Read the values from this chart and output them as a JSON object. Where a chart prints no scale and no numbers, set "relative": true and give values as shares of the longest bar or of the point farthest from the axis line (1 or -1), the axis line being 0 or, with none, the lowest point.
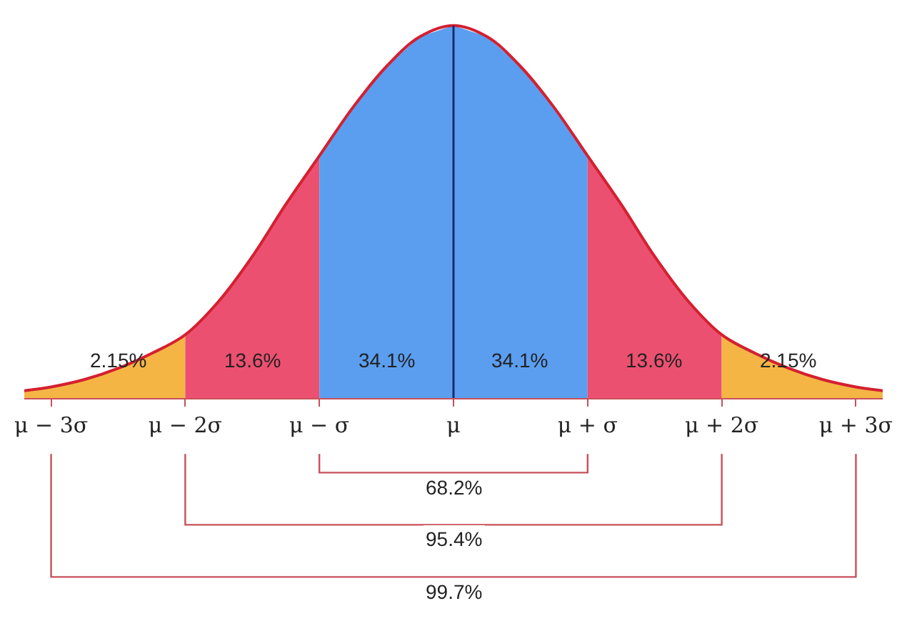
{
  "chart_data": {
    "type": "area",
    "relative": true,
    "xlim": [
      -3.2,
      3.2
    ],
    "xticks": [
      {
        "value": -3,
        "label": "μ − 3σ"
      },
      {
        "value": -2,
        "label": "μ − 2σ"
      },
      {
        "value": -1,
        "label": "μ − σ"
      },
      {
        "value": 0,
        "label": "μ"
      },
      {
        "value": 1,
        "label": "μ + σ"
      },
      {
        "value": 2,
        "label": "μ + 2σ"
      },
      {
        "value": 3,
        "label": "μ + 3σ"
      }
    ],
    "tick_labels": "x",
    "series": [
      {
        "color": "#f5b545",
        "x": [
          -3.2,
          -3,
          -2.75,
          -2.5,
          -2.25,
          -2
        ],
        "values": [
          0.02,
          0.03,
          0.05,
          0.08,
          0.12,
          0.17
        ]
      },
      {
        "color": "#ec5070",
        "x": [
          -2,
          -1.75,
          -1.5,
          -1.25,
          -1
        ],
        "values": [
          0.17,
          0.26,
          0.38,
          0.52,
          0.65
        ]
      },
      {
        "color": "#5b9ef0",
        "x": [
          -1,
          -0.75,
          -0.5,
          -0.25,
          0,
          0.25,
          0.5,
          0.75,
          1
        ],
        "values": [
          0.65,
          0.78,
          0.89,
          0.97,
          1,
          0.97,
          0.89,
          0.78,
          0.65
        ]
      },
      {
        "color": "#ec5070",
        "x": [
          1,
          1.25,
          1.5,
          1.75,
          2
        ],
        "values": [
          0.65,
          0.52,
          0.38,
          0.26,
          0.17
        ]
      },
      {
        "color": "#f5b545",
        "x": [
          2,
          2.25,
          2.5,
          2.75,
          3,
          3.2
        ],
        "values": [
          0.17,
          0.12,
          0.08,
          0.05,
          0.03,
          0.02
        ]
      },
      {
        "type": "line",
        "color": "#d42030",
        "x": [
          -3.2,
          -3,
          -2.75,
          -2.5,
          -2.25,
          -2,
          -1.75,
          -1.5,
          -1.25,
          -1,
          -0.75,
          -0.5,
          -0.25,
          0,
          0.25,
          0.5,
          0.75,
          1,
          1.25,
          1.5,
          1.75,
          2,
          2.25,
          2.5,
          2.75,
          3,
          3.2
        ],
        "values": [
          0.02,
          0.03,
          0.05,
          0.08,
          0.12,
          0.17,
          0.26,
          0.38,
          0.52,
          0.65,
          0.78,
          0.89,
          0.97,
          1,
          0.97,
          0.89,
          0.78,
          0.65,
          0.52,
          0.38,
          0.26,
          0.17,
          0.12,
          0.08,
          0.05,
          0.03,
          0.02
        ]
      }
    ],
    "ref_lines": [
      {
        "axis": "x",
        "value": 0,
        "color": "#1a2a6a"
      }
    ],
    "annotations": [
      "2.15%",
      "13.6%",
      "34.1%",
      "34.1%",
      "13.6%",
      "2.15%",
      "68.2%",
      "95.4%",
      "99.7%"
    ]
  }
}
